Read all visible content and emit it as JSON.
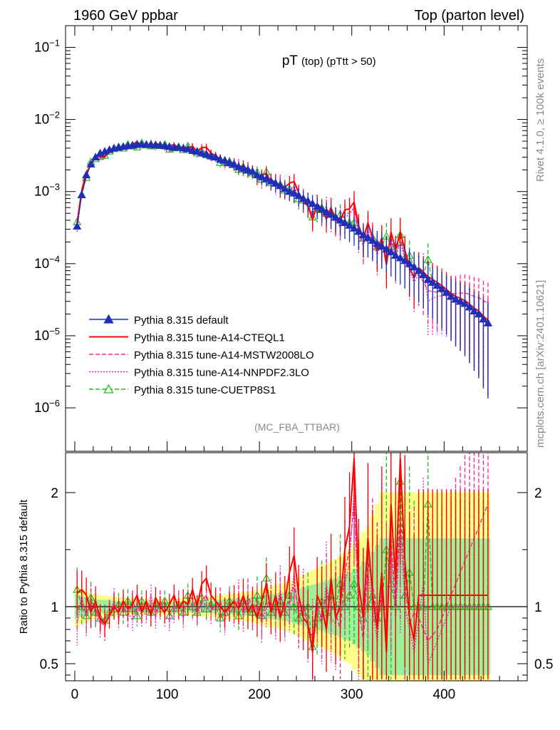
{
  "header": {
    "left": "1960 GeV ppbar",
    "right": "Top (parton level)"
  },
  "side_labels": {
    "rivet": "Rivet 4.1.0, ≥ 100k events",
    "mcplots": "mcplots.cern.ch [arXiv:2401.10621]"
  },
  "chart_data": [
    {
      "type": "line",
      "title": "pT (top) (pTtt > 50)",
      "title_main": "pT",
      "title_sub": "(top) (pTtt > 50)",
      "analysis": "(MC_FBA_TTBAR)",
      "yscale": "log",
      "xlim": [
        -10,
        490
      ],
      "ylim": [
        2.5e-07,
        0.2
      ],
      "ytick_labels": [
        "10−1",
        "10−2",
        "10−3",
        "10−4",
        "10−5",
        "10−6"
      ],
      "ytick_values": [
        0.1,
        0.01,
        0.001,
        0.0001,
        1e-05,
        1e-06
      ],
      "legend": [
        {
          "name": "Pythia 8.315 default",
          "color": "#1f2fb8",
          "dash": "",
          "marker": "triangle-filled"
        },
        {
          "name": "Pythia 8.315 tune-A14-CTEQL1",
          "color": "#ff0000",
          "dash": "",
          "marker": "none"
        },
        {
          "name": "Pythia 8.315 tune-A14-MSTW2008LO",
          "color": "#ff2090",
          "dash": "6,3",
          "marker": "none"
        },
        {
          "name": "Pythia 8.315 tune-A14-NNPDF2.3LO",
          "color": "#e020e0",
          "dash": "2,2",
          "marker": "none"
        },
        {
          "name": "Pythia 8.315 tune-CUETP8S1",
          "color": "#22bb22",
          "dash": "6,3",
          "marker": "triangle-open"
        }
      ],
      "x": [
        2.5,
        7.5,
        12.5,
        17.5,
        22.5,
        27.5,
        32.5,
        37.5,
        42.5,
        47.5,
        52.5,
        57.5,
        62.5,
        67.5,
        72.5,
        77.5,
        82.5,
        87.5,
        92.5,
        97.5,
        102.5,
        107.5,
        112.5,
        117.5,
        122.5,
        127.5,
        132.5,
        137.5,
        142.5,
        147.5,
        152.5,
        157.5,
        162.5,
        167.5,
        172.5,
        177.5,
        182.5,
        187.5,
        192.5,
        197.5,
        202.5,
        207.5,
        212.5,
        217.5,
        222.5,
        227.5,
        232.5,
        237.5,
        242.5,
        247.5,
        252.5,
        257.5,
        262.5,
        267.5,
        272.5,
        277.5,
        282.5,
        287.5,
        292.5,
        297.5,
        302.5,
        307.5,
        312.5,
        317.5,
        322.5,
        327.5,
        332.5,
        337.5,
        342.5,
        347.5,
        352.5,
        357.5,
        362.5,
        367.5,
        372.5,
        377.5,
        382.5,
        387.5,
        392.5,
        397.5,
        402.5,
        407.5,
        412.5,
        417.5,
        422.5,
        427.5,
        432.5,
        437.5,
        442.5,
        447.5
      ],
      "series": [
        {
          "name": "Pythia 8.315 default",
          "values": [
            0.00033,
            0.0009,
            0.0017,
            0.0024,
            0.003,
            0.0034,
            0.0036,
            0.0038,
            0.004,
            0.0041,
            0.0042,
            0.0043,
            0.0044,
            0.0045,
            0.0045,
            0.0045,
            0.0045,
            0.0044,
            0.0044,
            0.0043,
            0.0042,
            0.0041,
            0.0041,
            0.004,
            0.0039,
            0.0037,
            0.0036,
            0.0034,
            0.0033,
            0.0031,
            0.003,
            0.0028,
            0.0027,
            0.0025,
            0.0024,
            0.0022,
            0.0021,
            0.002,
            0.0019,
            0.0017,
            0.0016,
            0.0015,
            0.0014,
            0.0013,
            0.0012,
            0.0011,
            0.001,
            0.00095,
            0.00088,
            0.0008,
            0.00074,
            0.00068,
            0.00062,
            0.00057,
            0.00052,
            0.00048,
            0.00044,
            0.0004,
            0.00037,
            0.00034,
            0.00031,
            0.00028,
            0.00025,
            0.00023,
            0.00021,
            0.00019,
            0.000175,
            0.00016,
            0.000145,
            0.00013,
            0.00012,
            0.00011,
            0.0001,
            9e-05,
            8e-05,
            7e-05,
            6e-05,
            5.5e-05,
            5e-05,
            4.5e-05,
            4e-05,
            3.5e-05,
            3.2e-05,
            3e-05,
            2.8e-05,
            2.5e-05,
            2.2e-05,
            2e-05,
            1.7e-05,
            1.5e-05
          ]
        }
      ]
    },
    {
      "type": "line",
      "ylabel": "Ratio to Pythia 8.315 default",
      "xlim": [
        -10,
        490
      ],
      "ylim": [
        0.35,
        2.35
      ],
      "ytick_labels": [
        "0.5",
        "1",
        "2"
      ],
      "ytick_values": [
        0.5,
        1,
        2
      ],
      "xtick_labels": [
        "0",
        "100",
        "200",
        "300",
        "400"
      ],
      "xtick_values": [
        0,
        100,
        200,
        300,
        400
      ],
      "band_yellow_halfwidth": [
        0.18,
        0.15,
        0.14,
        0.12,
        0.11,
        0.1,
        0.1,
        0.09,
        0.09,
        0.08,
        0.08,
        0.08,
        0.07,
        0.07,
        0.07,
        0.07,
        0.07,
        0.07,
        0.07,
        0.07,
        0.07,
        0.07,
        0.07,
        0.08,
        0.08,
        0.08,
        0.08,
        0.09,
        0.09,
        0.09,
        0.1,
        0.1,
        0.11,
        0.11,
        0.12,
        0.12,
        0.13,
        0.13,
        0.14,
        0.15,
        0.16,
        0.17,
        0.18,
        0.19,
        0.2,
        0.21,
        0.22,
        0.24,
        0.26,
        0.28,
        0.3,
        0.32,
        0.34,
        0.36,
        0.38,
        0.4,
        0.42,
        0.45,
        0.48,
        0.5,
        0.55,
        0.6,
        0.65,
        0.7,
        0.8,
        0.9,
        1.0,
        1.0,
        1.0,
        1.0,
        1.0,
        1.0,
        1.0,
        1.0,
        1.0,
        1.0,
        1.0,
        1.0,
        1.0,
        1.0,
        1.0,
        1.0,
        1.0,
        1.0,
        1.0,
        1.0,
        1.0,
        1.0,
        1.0,
        1.0
      ],
      "series": [
        {
          "name": "Pythia 8.315 tune-A14-CTEQL1",
          "values": [
            1.12,
            1.15,
            1.1,
            0.95,
            1.05,
            0.9,
            0.85,
            0.92,
            1.0,
            0.95,
            1.05,
            0.98,
            1.02,
            1.1,
            0.95,
            1.05,
            0.92,
            1.08,
            1.0,
            0.95,
            1.02,
            1.1,
            0.98,
            1.05,
            1.02,
            1.15,
            1.0,
            1.2,
            1.25,
            1.1,
            1.05,
            1.0,
            0.95,
            1.0,
            1.05,
            0.98,
            1.1,
            0.95,
            1.02,
            0.9,
            1.05,
            1.2,
            0.95,
            1.1,
            0.9,
            1.05,
            1.3,
            1.45,
            1.1,
            0.9,
            0.85,
            0.6,
            1.1,
            1.0,
            0.8,
            1.25,
            0.9,
            1.0,
            1.5,
            1.7,
            2.3,
            1.2,
            0.9,
            1.6,
            1.1,
            0.8,
            1.3,
            0.6,
            1.9,
            1.2,
            2.3,
            1.4,
            0.9,
            0.7,
            1.1,
            1.1,
            1.1,
            1.1,
            1.1,
            1.1,
            1.1,
            1.1,
            1.1,
            1.1,
            1.1,
            1.1,
            1.1,
            1.1,
            1.1,
            1.1
          ]
        },
        {
          "name": "Pythia 8.315 tune-A14-MSTW2008LO",
          "values": [
            0.98,
            1.05,
            0.95,
            1.02,
            0.98,
            0.88,
            0.82,
            0.95,
            1.02,
            0.98,
            1.0,
            0.92,
            1.05,
            0.95,
            1.0,
            0.98,
            1.02,
            0.95,
            1.05,
            0.98,
            0.95,
            1.0,
            1.05,
            0.98,
            1.02,
            1.08,
            0.95,
            1.05,
            1.1,
            0.98,
            1.0,
            1.05,
            0.92,
            1.02,
            0.98,
            1.05,
            0.95,
            1.1,
            0.98,
            1.02,
            0.9,
            1.05,
            1.0,
            0.95,
            1.1,
            0.98,
            1.05,
            1.2,
            0.95,
            1.0,
            0.85,
            0.7,
            1.0,
            0.9,
            1.1,
            1.0,
            0.95,
            0.8,
            1.3,
            1.5,
            1.9,
            1.0,
            0.7,
            1.4,
            1.2,
            0.9,
            1.1,
            0.8,
            1.6,
            1.0,
            1.8,
            1.2,
            0.85,
            0.95,
            0.9,
            0.8,
            0.7,
            0.75,
            0.8,
            0.9,
            1.0,
            1.1,
            1.2,
            1.3,
            1.4,
            1.5,
            1.6,
            1.7,
            1.8,
            1.9
          ]
        },
        {
          "name": "Pythia 8.315 tune-A14-NNPDF2.3LO",
          "values": [
            0.85,
            1.1,
            0.9,
            1.05,
            0.95,
            0.85,
            0.9,
            0.95,
            1.05,
            0.9,
            1.0,
            0.95,
            0.88,
            1.02,
            0.92,
            0.95,
            1.1,
            0.9,
            1.05,
            0.92,
            0.88,
            0.95,
            1.02,
            0.9,
            1.05,
            0.98,
            0.92,
            1.05,
            1.0,
            0.95,
            1.02,
            0.95,
            0.88,
            1.0,
            0.95,
            1.1,
            0.92,
            1.05,
            0.95,
            1.0,
            0.85,
            1.0,
            1.05,
            0.9,
            1.15,
            0.92,
            1.0,
            1.3,
            0.9,
            1.05,
            0.8,
            0.75,
            1.05,
            0.85,
            1.2,
            0.9,
            0.85,
            1.1,
            1.2,
            1.4,
            2.0,
            0.9,
            0.8,
            1.3,
            1.0,
            0.7,
            1.2,
            0.7,
            1.5,
            0.9,
            1.7,
            1.0,
            0.8,
            0.6,
            0.9,
            1.2,
            0.5,
            0.6,
            0.7,
            0.8,
            0.9,
            1.0,
            1.0,
            1.0,
            1.0,
            1.0,
            1.0,
            1.0,
            1.0,
            1.0
          ]
        },
        {
          "name": "Pythia 8.315 tune-CUETP8S1",
          "values": [
            1.15,
            1.0,
            0.92,
            1.08,
            0.95,
            0.9,
            0.88,
            0.95,
            0.98,
            1.02,
            0.95,
            1.05,
            0.98,
            0.92,
            1.05,
            0.98,
            0.95,
            1.02,
            0.98,
            1.05,
            0.92,
            0.98,
            1.02,
            0.95,
            1.1,
            1.0,
            0.95,
            1.08,
            0.98,
            1.02,
            1.0,
            0.9,
            0.95,
            1.05,
            0.98,
            0.92,
            1.05,
            0.98,
            0.95,
            1.1,
            0.92,
            1.25,
            0.95,
            1.0,
            1.05,
            0.95,
            1.1,
            1.0,
            0.9,
            0.95,
            1.0,
            0.65,
            0.9,
            1.05,
            0.95,
            1.1,
            1.0,
            1.2,
            1.0,
            1.1,
            1.2,
            1.0,
            0.9,
            1.0,
            1.1,
            0.9,
            1.0,
            1.5,
            1.2,
            1.0,
            2.1,
            1.1,
            1.3,
            1.0,
            1.0,
            1.0,
            1.9,
            1.0,
            1.0,
            1.0,
            1.0,
            1.0,
            1.0,
            1.0,
            1.0,
            1.0,
            1.0,
            1.0,
            1.0,
            1.0
          ]
        }
      ]
    }
  ]
}
